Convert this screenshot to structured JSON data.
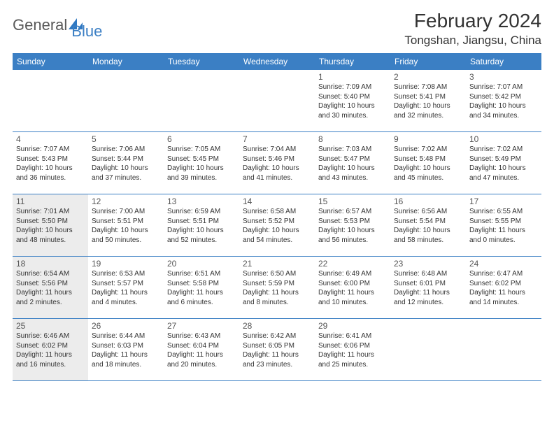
{
  "brand": {
    "text_general": "General",
    "text_blue": "Blue",
    "logo_fill": "#2f78c2"
  },
  "title": {
    "month": "February 2024",
    "location": "Tongshan, Jiangsu, China",
    "title_fontsize": 28,
    "location_fontsize": 17,
    "text_color": "#333333"
  },
  "colors": {
    "header_bg": "#3b7fc4",
    "header_text": "#ffffff",
    "row_border": "#3b7fc4",
    "shaded_bg": "#ececec",
    "body_text": "#333333",
    "daynum_text": "#555555",
    "background": "#ffffff"
  },
  "layout": {
    "columns": 7,
    "rows": 5,
    "cell_min_height": 88,
    "daynum_fontsize": 12,
    "detail_fontsize": 10,
    "header_fontsize": 12
  },
  "day_names": [
    "Sunday",
    "Monday",
    "Tuesday",
    "Wednesday",
    "Thursday",
    "Friday",
    "Saturday"
  ],
  "weeks": [
    [
      {
        "num": "",
        "sunrise": "",
        "sunset": "",
        "daylight": "",
        "shaded": false
      },
      {
        "num": "",
        "sunrise": "",
        "sunset": "",
        "daylight": "",
        "shaded": false
      },
      {
        "num": "",
        "sunrise": "",
        "sunset": "",
        "daylight": "",
        "shaded": false
      },
      {
        "num": "",
        "sunrise": "",
        "sunset": "",
        "daylight": "",
        "shaded": false
      },
      {
        "num": "1",
        "sunrise": "Sunrise: 7:09 AM",
        "sunset": "Sunset: 5:40 PM",
        "daylight": "Daylight: 10 hours and 30 minutes.",
        "shaded": false
      },
      {
        "num": "2",
        "sunrise": "Sunrise: 7:08 AM",
        "sunset": "Sunset: 5:41 PM",
        "daylight": "Daylight: 10 hours and 32 minutes.",
        "shaded": false
      },
      {
        "num": "3",
        "sunrise": "Sunrise: 7:07 AM",
        "sunset": "Sunset: 5:42 PM",
        "daylight": "Daylight: 10 hours and 34 minutes.",
        "shaded": false
      }
    ],
    [
      {
        "num": "4",
        "sunrise": "Sunrise: 7:07 AM",
        "sunset": "Sunset: 5:43 PM",
        "daylight": "Daylight: 10 hours and 36 minutes.",
        "shaded": false
      },
      {
        "num": "5",
        "sunrise": "Sunrise: 7:06 AM",
        "sunset": "Sunset: 5:44 PM",
        "daylight": "Daylight: 10 hours and 37 minutes.",
        "shaded": false
      },
      {
        "num": "6",
        "sunrise": "Sunrise: 7:05 AM",
        "sunset": "Sunset: 5:45 PM",
        "daylight": "Daylight: 10 hours and 39 minutes.",
        "shaded": false
      },
      {
        "num": "7",
        "sunrise": "Sunrise: 7:04 AM",
        "sunset": "Sunset: 5:46 PM",
        "daylight": "Daylight: 10 hours and 41 minutes.",
        "shaded": false
      },
      {
        "num": "8",
        "sunrise": "Sunrise: 7:03 AM",
        "sunset": "Sunset: 5:47 PM",
        "daylight": "Daylight: 10 hours and 43 minutes.",
        "shaded": false
      },
      {
        "num": "9",
        "sunrise": "Sunrise: 7:02 AM",
        "sunset": "Sunset: 5:48 PM",
        "daylight": "Daylight: 10 hours and 45 minutes.",
        "shaded": false
      },
      {
        "num": "10",
        "sunrise": "Sunrise: 7:02 AM",
        "sunset": "Sunset: 5:49 PM",
        "daylight": "Daylight: 10 hours and 47 minutes.",
        "shaded": false
      }
    ],
    [
      {
        "num": "11",
        "sunrise": "Sunrise: 7:01 AM",
        "sunset": "Sunset: 5:50 PM",
        "daylight": "Daylight: 10 hours and 48 minutes.",
        "shaded": true
      },
      {
        "num": "12",
        "sunrise": "Sunrise: 7:00 AM",
        "sunset": "Sunset: 5:51 PM",
        "daylight": "Daylight: 10 hours and 50 minutes.",
        "shaded": false
      },
      {
        "num": "13",
        "sunrise": "Sunrise: 6:59 AM",
        "sunset": "Sunset: 5:51 PM",
        "daylight": "Daylight: 10 hours and 52 minutes.",
        "shaded": false
      },
      {
        "num": "14",
        "sunrise": "Sunrise: 6:58 AM",
        "sunset": "Sunset: 5:52 PM",
        "daylight": "Daylight: 10 hours and 54 minutes.",
        "shaded": false
      },
      {
        "num": "15",
        "sunrise": "Sunrise: 6:57 AM",
        "sunset": "Sunset: 5:53 PM",
        "daylight": "Daylight: 10 hours and 56 minutes.",
        "shaded": false
      },
      {
        "num": "16",
        "sunrise": "Sunrise: 6:56 AM",
        "sunset": "Sunset: 5:54 PM",
        "daylight": "Daylight: 10 hours and 58 minutes.",
        "shaded": false
      },
      {
        "num": "17",
        "sunrise": "Sunrise: 6:55 AM",
        "sunset": "Sunset: 5:55 PM",
        "daylight": "Daylight: 11 hours and 0 minutes.",
        "shaded": false
      }
    ],
    [
      {
        "num": "18",
        "sunrise": "Sunrise: 6:54 AM",
        "sunset": "Sunset: 5:56 PM",
        "daylight": "Daylight: 11 hours and 2 minutes.",
        "shaded": true
      },
      {
        "num": "19",
        "sunrise": "Sunrise: 6:53 AM",
        "sunset": "Sunset: 5:57 PM",
        "daylight": "Daylight: 11 hours and 4 minutes.",
        "shaded": false
      },
      {
        "num": "20",
        "sunrise": "Sunrise: 6:51 AM",
        "sunset": "Sunset: 5:58 PM",
        "daylight": "Daylight: 11 hours and 6 minutes.",
        "shaded": false
      },
      {
        "num": "21",
        "sunrise": "Sunrise: 6:50 AM",
        "sunset": "Sunset: 5:59 PM",
        "daylight": "Daylight: 11 hours and 8 minutes.",
        "shaded": false
      },
      {
        "num": "22",
        "sunrise": "Sunrise: 6:49 AM",
        "sunset": "Sunset: 6:00 PM",
        "daylight": "Daylight: 11 hours and 10 minutes.",
        "shaded": false
      },
      {
        "num": "23",
        "sunrise": "Sunrise: 6:48 AM",
        "sunset": "Sunset: 6:01 PM",
        "daylight": "Daylight: 11 hours and 12 minutes.",
        "shaded": false
      },
      {
        "num": "24",
        "sunrise": "Sunrise: 6:47 AM",
        "sunset": "Sunset: 6:02 PM",
        "daylight": "Daylight: 11 hours and 14 minutes.",
        "shaded": false
      }
    ],
    [
      {
        "num": "25",
        "sunrise": "Sunrise: 6:46 AM",
        "sunset": "Sunset: 6:02 PM",
        "daylight": "Daylight: 11 hours and 16 minutes.",
        "shaded": true
      },
      {
        "num": "26",
        "sunrise": "Sunrise: 6:44 AM",
        "sunset": "Sunset: 6:03 PM",
        "daylight": "Daylight: 11 hours and 18 minutes.",
        "shaded": false
      },
      {
        "num": "27",
        "sunrise": "Sunrise: 6:43 AM",
        "sunset": "Sunset: 6:04 PM",
        "daylight": "Daylight: 11 hours and 20 minutes.",
        "shaded": false
      },
      {
        "num": "28",
        "sunrise": "Sunrise: 6:42 AM",
        "sunset": "Sunset: 6:05 PM",
        "daylight": "Daylight: 11 hours and 23 minutes.",
        "shaded": false
      },
      {
        "num": "29",
        "sunrise": "Sunrise: 6:41 AM",
        "sunset": "Sunset: 6:06 PM",
        "daylight": "Daylight: 11 hours and 25 minutes.",
        "shaded": false
      },
      {
        "num": "",
        "sunrise": "",
        "sunset": "",
        "daylight": "",
        "shaded": false
      },
      {
        "num": "",
        "sunrise": "",
        "sunset": "",
        "daylight": "",
        "shaded": false
      }
    ]
  ]
}
